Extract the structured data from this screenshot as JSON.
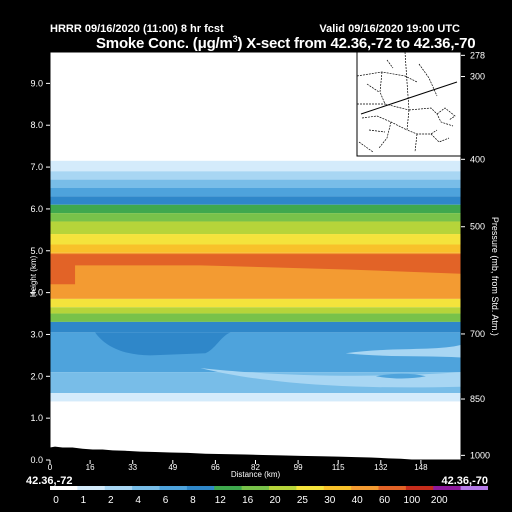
{
  "header": {
    "run_label": "HRRR 09/16/2020 (11:00) 8 hr fcst",
    "valid_label": "Valid 09/16/2020 19:00 UTC"
  },
  "chart_data": {
    "type": "heatmap",
    "title_pre": "Smoke Conc. (",
    "title_unit": "μg/m",
    "title_unit_sup": "3",
    "title_post": ") X-sect from 42.36,-72 to 42.36,-70",
    "xlabel": "Distance (km)",
    "ylabel_left": "Height (km)",
    "ylabel_right": "Pressure (mb, from Std. Atm.)",
    "x_ticks": [
      0,
      16,
      33,
      49,
      66,
      82,
      99,
      115,
      132,
      148
    ],
    "x_range": [
      0,
      164
    ],
    "y_ticks": [
      0.0,
      1.0,
      2.0,
      3.0,
      4.0,
      5.0,
      6.0,
      7.0,
      8.0,
      9.0
    ],
    "y_range": [
      0,
      9.75
    ],
    "pressure_ticks": [
      278,
      300,
      400,
      500,
      700,
      850,
      1000
    ],
    "endpoint_left": "42.36,-72",
    "endpoint_right": "42.36,-70",
    "colorbar_levels": [
      "0",
      "1",
      "2",
      "4",
      "6",
      "8",
      "12",
      "16",
      "20",
      "25",
      "30",
      "40",
      "60",
      "100",
      "200"
    ],
    "colorbar_colors": [
      "#ffffff",
      "#d4ebfb",
      "#a8d6f3",
      "#78bde8",
      "#4ea3dc",
      "#2f87c9",
      "#3fa84e",
      "#78c24a",
      "#b6d43a",
      "#f4e33c",
      "#f8c12a",
      "#f39b32",
      "#e26327",
      "#c62d1c",
      "#8e1a9c",
      "#b57be8"
    ],
    "layers": [
      {
        "bottom": 6.9,
        "top": 7.15,
        "level": 1
      },
      {
        "bottom": 6.7,
        "top": 6.9,
        "level": 2
      },
      {
        "bottom": 6.5,
        "top": 6.7,
        "level": 3
      },
      {
        "bottom": 6.3,
        "top": 6.5,
        "level": 4
      },
      {
        "bottom": 6.1,
        "top": 6.3,
        "level": 5
      },
      {
        "bottom": 5.9,
        "top": 6.1,
        "level": 6
      },
      {
        "bottom": 5.7,
        "top": 5.9,
        "level": 7
      },
      {
        "bottom": 5.4,
        "top": 5.7,
        "level": 8
      },
      {
        "bottom": 5.15,
        "top": 5.4,
        "level": 9
      },
      {
        "bottom": 4.95,
        "top": 5.15,
        "level": 10
      },
      {
        "bottom": 4.75,
        "top": 4.95,
        "level": 11
      },
      {
        "bottom": 3.85,
        "top": 4.75,
        "level": 11
      },
      {
        "bottom": 3.65,
        "top": 3.85,
        "level": 9
      },
      {
        "bottom": 3.5,
        "top": 3.65,
        "level": 8
      },
      {
        "bottom": 3.3,
        "top": 3.5,
        "level": 7
      },
      {
        "bottom": 3.05,
        "top": 3.3,
        "level": 5
      },
      {
        "bottom": 2.1,
        "top": 3.05,
        "level": 4
      },
      {
        "bottom": 1.6,
        "top": 2.1,
        "level": 3
      },
      {
        "bottom": 1.4,
        "top": 1.6,
        "level": 1
      }
    ]
  }
}
